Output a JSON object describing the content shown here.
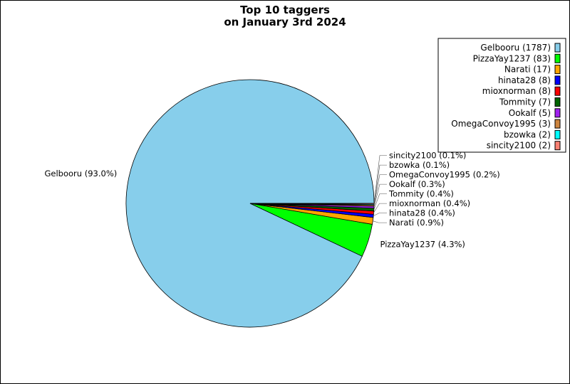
{
  "chart_data": {
    "type": "pie",
    "title": [
      "Top 10 taggers",
      "on January 3rd 2024"
    ],
    "slices": [
      {
        "name": "Gelbooru",
        "value": 1787,
        "pct_label": "93.0%",
        "color": "#87ceeb"
      },
      {
        "name": "PizzaYay1237",
        "value": 83,
        "pct_label": "4.3%",
        "color": "#00ff00"
      },
      {
        "name": "Narati",
        "value": 17,
        "pct_label": "0.9%",
        "color": "#ffa500"
      },
      {
        "name": "hinata28",
        "value": 8,
        "pct_label": "0.4%",
        "color": "#0000ff"
      },
      {
        "name": "mioxnorman",
        "value": 8,
        "pct_label": "0.4%",
        "color": "#ff0000"
      },
      {
        "name": "Tommity",
        "value": 7,
        "pct_label": "0.4%",
        "color": "#006400"
      },
      {
        "name": "Ookalf",
        "value": 5,
        "pct_label": "0.3%",
        "color": "#a020f0"
      },
      {
        "name": "OmegaConvoy1995",
        "value": 3,
        "pct_label": "0.2%",
        "color": "#cd853f"
      },
      {
        "name": "bzowka",
        "value": 2,
        "pct_label": "0.1%",
        "color": "#00ffff"
      },
      {
        "name": "sincity2100",
        "value": 2,
        "pct_label": "0.1%",
        "color": "#fa8072"
      }
    ],
    "start_angle_deg": 0,
    "direction": "counterclockwise",
    "legend_placement": "top-right"
  }
}
